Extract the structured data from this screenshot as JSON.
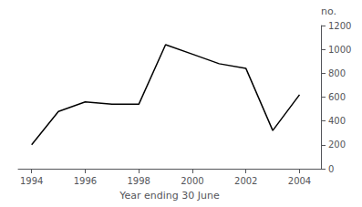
{
  "chart_data": {
    "type": "line",
    "x": [
      1994,
      1995,
      1996,
      1997,
      1998,
      1999,
      2000,
      2001,
      2002,
      2003,
      2004
    ],
    "values": [
      200,
      480,
      560,
      540,
      540,
      1040,
      960,
      880,
      840,
      320,
      620
    ],
    "xlabel": "Year ending 30 June",
    "ylabel": "no.",
    "xlim": [
      1993.5,
      2004.8
    ],
    "xticks": [
      1994,
      1996,
      1998,
      2000,
      2002,
      2004
    ],
    "ylim": [
      0,
      1200
    ],
    "yticks": [
      0,
      200,
      400,
      600,
      800,
      1000,
      1200
    ],
    "color": "#000000",
    "grid": false
  }
}
